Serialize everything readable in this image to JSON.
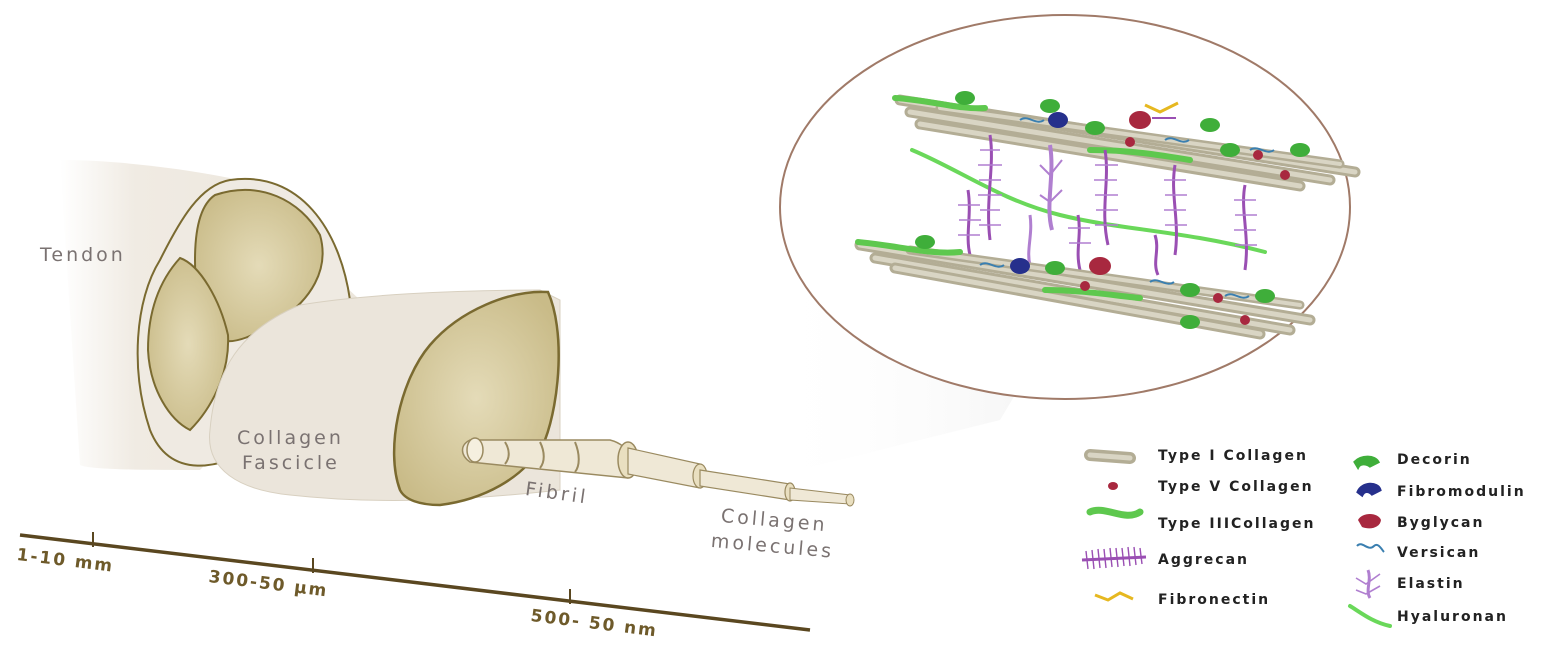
{
  "labels": {
    "tendon": "Tendon",
    "fascicle_line1": "Collagen",
    "fascicle_line2": "Fascicle",
    "fibril": "Fibril",
    "molecules_line1": "Collagen",
    "molecules_line2": "molecules"
  },
  "scale": {
    "s1": "1-10 mm",
    "s2": "300-50 µm",
    "s3": "500- 50 nm"
  },
  "legend": {
    "left": [
      {
        "label": "Type I Collagen",
        "icon": "collagen-type-1-rod-icon",
        "color": "#b3ad95"
      },
      {
        "label": "Type V Collagen",
        "icon": "collagen-type-5-dot-icon",
        "color": "#a8283f"
      },
      {
        "label": "Type IIICollagen",
        "icon": "collagen-type-3-strand-icon",
        "color": "#5ec84e"
      },
      {
        "label": "Aggrecan",
        "icon": "aggrecan-brush-icon",
        "color": "#9a4fb3"
      },
      {
        "label": "Fibronectin",
        "icon": "fibronectin-icon",
        "color": "#e6b820"
      }
    ],
    "right": [
      {
        "label": "Decorin",
        "icon": "decorin-icon",
        "color": "#3fae3a"
      },
      {
        "label": "Fibromodulin",
        "icon": "fibromodulin-icon",
        "color": "#26308c"
      },
      {
        "label": "Byglycan",
        "icon": "byglycan-icon",
        "color": "#a8283f"
      },
      {
        "label": "Versican",
        "icon": "versican-icon",
        "color": "#3a7fb0"
      },
      {
        "label": "Elastin",
        "icon": "elastin-icon",
        "color": "#b07fd0"
      },
      {
        "label": "Hyaluronan",
        "icon": "hyaluronan-icon",
        "color": "#6ad85a"
      }
    ]
  },
  "colors": {
    "tissue_fill": "#ece6dc",
    "fascicle_cut": "#d9cea6",
    "outline": "#7a6a30",
    "ellipse_border": "#a07a68",
    "scale_bar": "#5a4720"
  }
}
